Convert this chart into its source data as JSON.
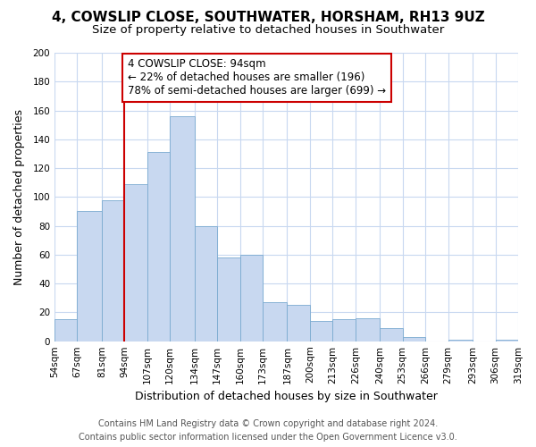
{
  "title": "4, COWSLIP CLOSE, SOUTHWATER, HORSHAM, RH13 9UZ",
  "subtitle": "Size of property relative to detached houses in Southwater",
  "xlabel": "Distribution of detached houses by size in Southwater",
  "ylabel": "Number of detached properties",
  "footer_line1": "Contains HM Land Registry data © Crown copyright and database right 2024.",
  "footer_line2": "Contains public sector information licensed under the Open Government Licence v3.0.",
  "bar_edges": [
    54,
    67,
    81,
    94,
    107,
    120,
    134,
    147,
    160,
    173,
    187,
    200,
    213,
    226,
    240,
    253,
    266,
    279,
    293,
    306,
    319
  ],
  "bar_heights": [
    15,
    90,
    98,
    109,
    131,
    156,
    80,
    58,
    60,
    27,
    25,
    14,
    15,
    16,
    9,
    3,
    0,
    1,
    0,
    1
  ],
  "bar_color": "#c8d8f0",
  "bar_edgecolor": "#7aaad0",
  "property_line_x": 94,
  "property_line_color": "#cc0000",
  "annotation_line1": "4 COWSLIP CLOSE: 94sqm",
  "annotation_line2": "← 22% of detached houses are smaller (196)",
  "annotation_line3": "78% of semi-detached houses are larger (699) →",
  "annotation_box_facecolor": "#ffffff",
  "annotation_box_edgecolor": "#cc0000",
  "ylim": [
    0,
    200
  ],
  "tick_labels": [
    "54sqm",
    "67sqm",
    "81sqm",
    "94sqm",
    "107sqm",
    "120sqm",
    "134sqm",
    "147sqm",
    "160sqm",
    "173sqm",
    "187sqm",
    "200sqm",
    "213sqm",
    "226sqm",
    "240sqm",
    "253sqm",
    "266sqm",
    "279sqm",
    "293sqm",
    "306sqm",
    "319sqm"
  ],
  "background_color": "#ffffff",
  "grid_color": "#c8d8f0",
  "title_fontsize": 11,
  "subtitle_fontsize": 9.5,
  "axis_label_fontsize": 9,
  "tick_fontsize": 7.5,
  "annotation_fontsize": 8.5,
  "footer_fontsize": 7
}
